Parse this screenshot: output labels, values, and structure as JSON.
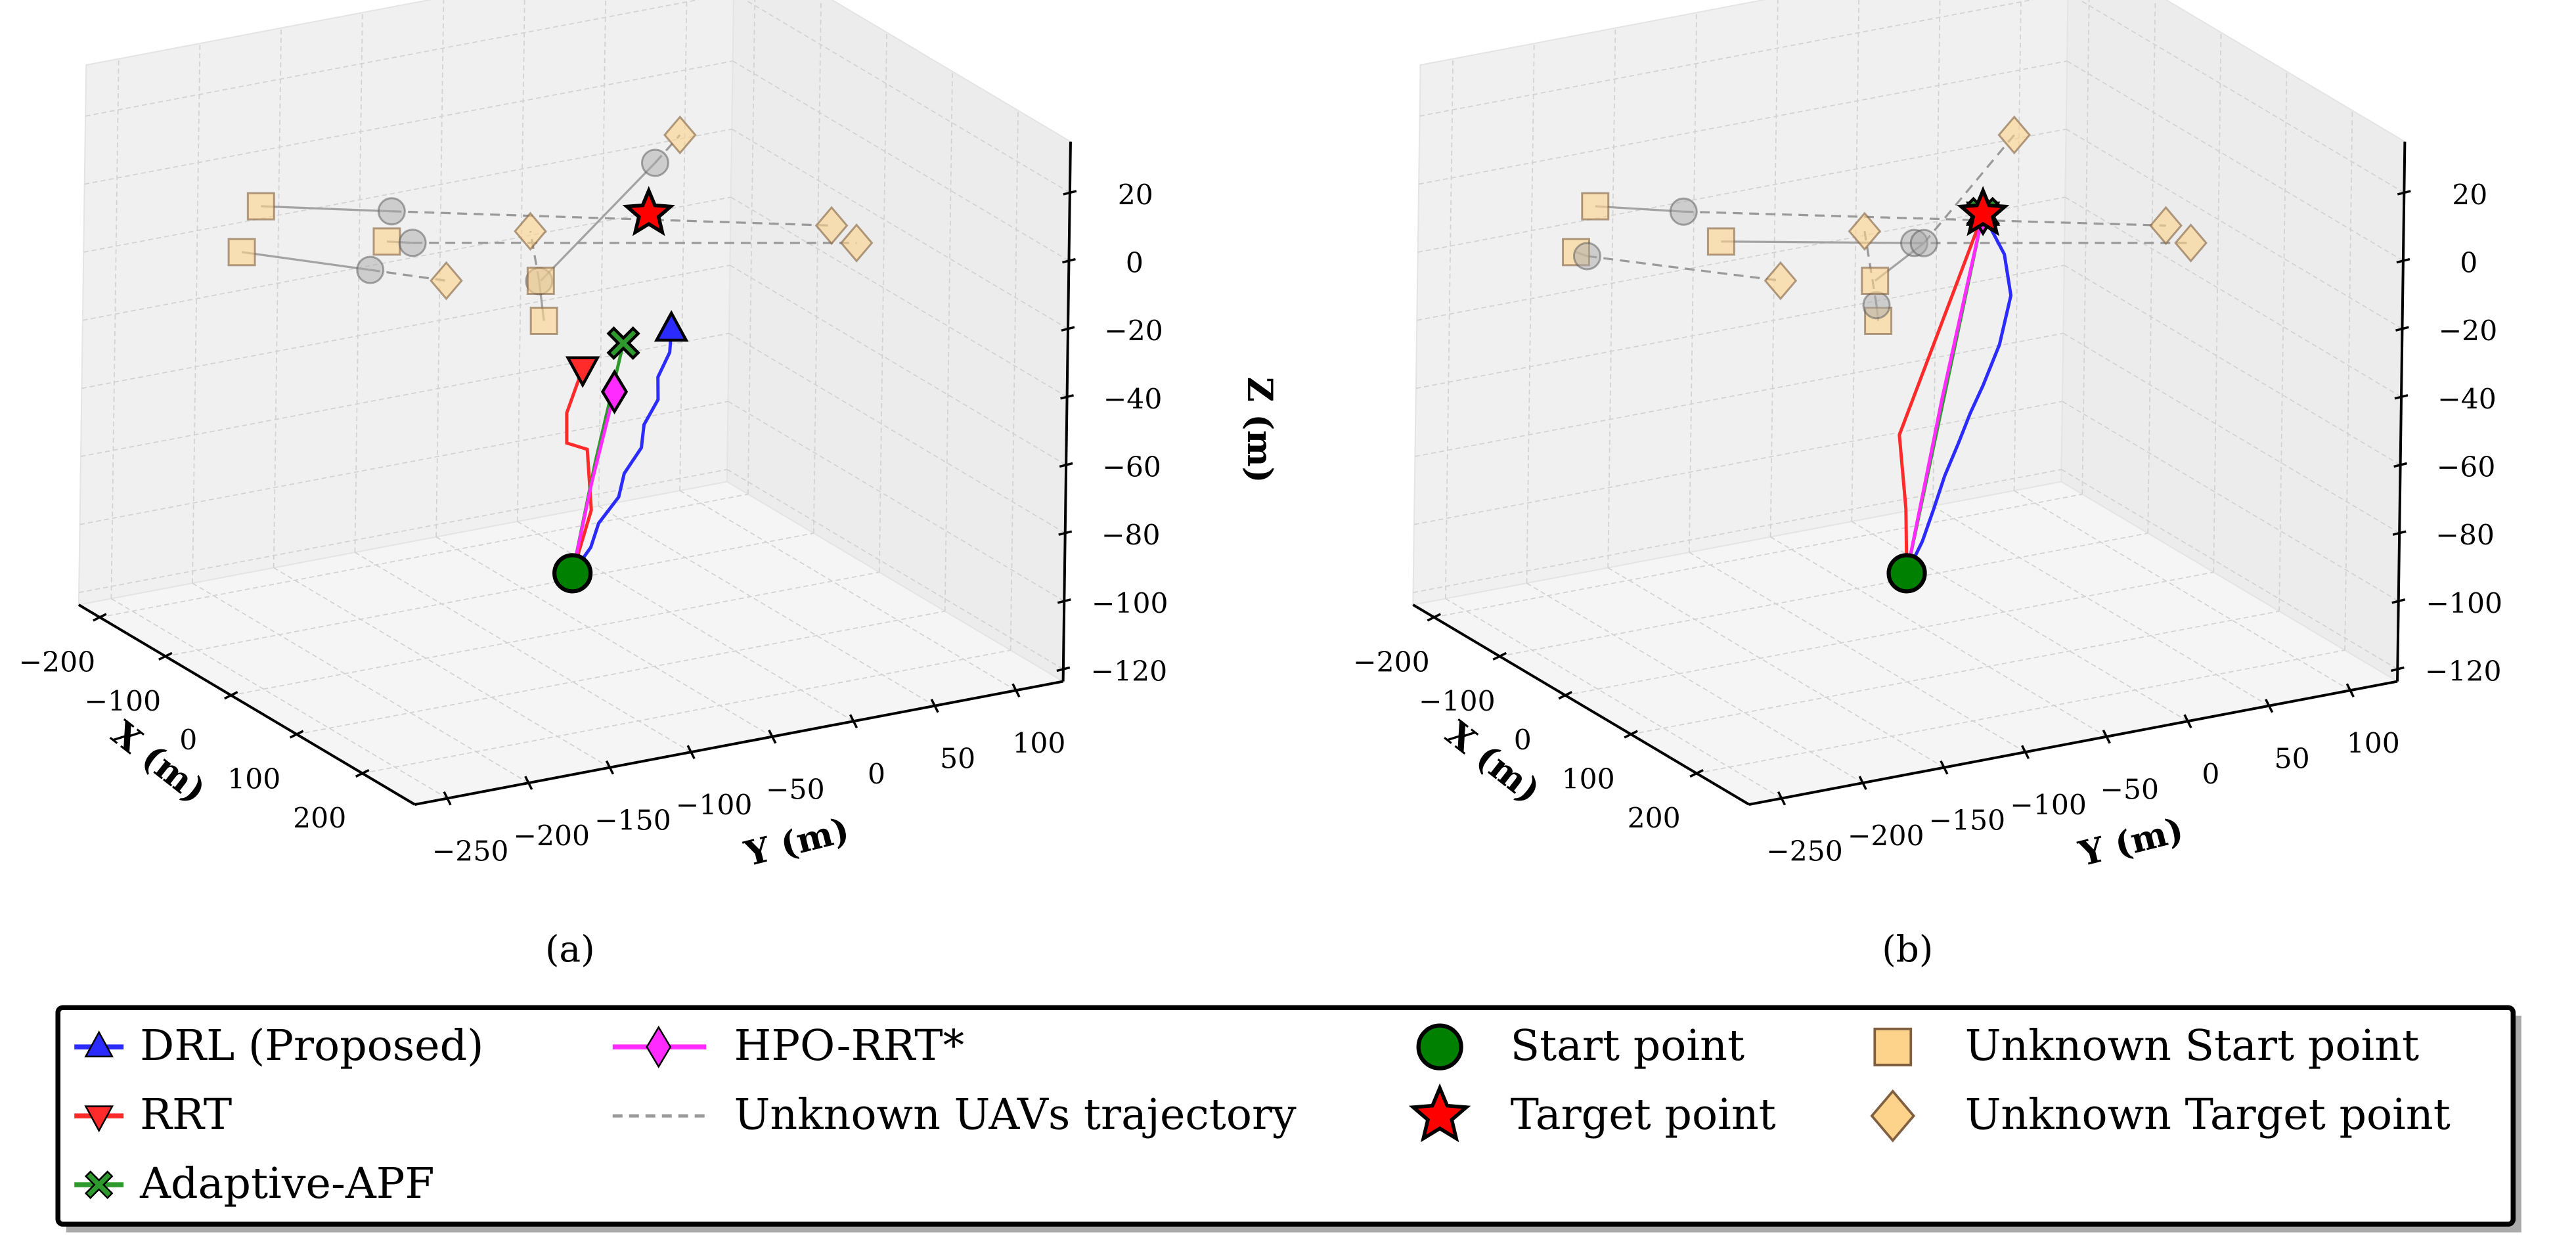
{
  "chart_data": {
    "type": "scatter3d",
    "axes": {
      "xlabel": "X (m)",
      "ylabel": "Y (m)",
      "zlabel": "Z (m)",
      "xlim": [
        -232,
        280
      ],
      "ylim": [
        -270,
        129
      ],
      "zlim": [
        -123.6,
        35
      ],
      "xticks": [
        -200,
        -100,
        0,
        100,
        200
      ],
      "xtick_labels": [
        "−200",
        "−100",
        "0",
        "100",
        "200"
      ],
      "yticks": [
        -250,
        -200,
        -150,
        -100,
        -50,
        0,
        50,
        100
      ],
      "ytick_labels": [
        "−250",
        "−200",
        "−150",
        "−100",
        "−50",
        "0",
        "50",
        "100"
      ],
      "zticks": [
        -120,
        -100,
        -80,
        -60,
        -40,
        -20,
        0,
        20
      ],
      "ztick_labels": [
        "−120",
        "−100",
        "−80",
        "−60",
        "−40",
        "−20",
        "0",
        "20"
      ],
      "grid": true
    },
    "start_point": [
      44.5,
      -78.5,
      -100
    ],
    "target_point": [
      132.4,
      -70.4,
      15
    ],
    "colors": {
      "DRL": "#2b2bff",
      "RRT": "#ff2b2b",
      "APF": "#2e9a2e",
      "HPO": "#ff2bff",
      "unknown_line": "#9a9a9a",
      "unknown_fill": "#fdd28a",
      "start": "#008000",
      "target": "#ff0000"
    },
    "panels": [
      {
        "caption": "(a)",
        "trajectories": {
          "DRL": [
            [
              44.5,
              -78.5,
              -100
            ],
            [
              56.9,
              -72.5,
              -91.5
            ],
            [
              69.2,
              -72.9,
              -83
            ],
            [
              81.6,
              -65.8,
              -74.5
            ],
            [
              93.9,
              -67.6,
              -66
            ],
            [
              106.3,
              -62.3,
              -57.5
            ],
            [
              118.6,
              -65.9,
              -49
            ],
            [
              131,
              -62.5,
              -40.5
            ],
            [
              143.3,
              -67.8,
              -32
            ],
            [
              155.7,
              -65.8,
              -23.5
            ],
            [
              168,
              -70,
              -15
            ]
          ],
          "RRT": [
            [
              44.5,
              -78.5,
              -100
            ],
            [
              80.9,
              -82.3,
              -76.9
            ],
            [
              109.3,
              -96.9,
              -54.5
            ],
            [
              104.6,
              -107.7,
              -52.2
            ],
            [
              119.4,
              -114,
              -41.1
            ],
            [
              145,
              -115,
              -25
            ]
          ],
          "APF": [
            [
              44.5,
              -78.5,
              -100
            ],
            [
              100,
              -88,
              -60
            ],
            [
              157,
              -95,
              -18
            ]
          ],
          "HPO": [
            [
              44.5,
              -78.5,
              -100
            ],
            [
              105,
              -92,
              -65
            ],
            [
              169,
              -105,
              -30
            ]
          ]
        },
        "unknown_uavs": [
          {
            "start": [
              -58,
              -232,
              10
            ],
            "current": [
              0,
              -175,
              10
            ],
            "target": [
              190,
              19,
              10
            ]
          },
          {
            "start": [
              57,
              -201,
              10
            ],
            "current": [
              69,
              -190,
              10
            ],
            "target": [
              233,
              17,
              10
            ]
          },
          {
            "start": [
              -42,
              -250,
              0
            ],
            "current": [
              106,
              -231,
              10
            ],
            "target": [
              155,
              -204,
              10
            ]
          },
          {
            "start": [
              203,
              -163,
              0
            ],
            "current": [
              190,
              -161,
              10
            ],
            "target": [
              90,
              -126,
              10
            ]
          },
          {
            "start": [
              190,
              -160,
              10
            ],
            "current": [
              69,
              -41,
              20
            ],
            "target": [
              57,
              -21,
              25
            ]
          }
        ]
      },
      {
        "caption": "(b)",
        "trajectories": {
          "DRL": [
            [
              44.5,
              -78.5,
              -100
            ],
            [
              54,
              -73,
              -90
            ],
            [
              64.2,
              -70.4,
              -79.5
            ],
            [
              74,
              -68,
              -69
            ],
            [
              84.4,
              -64,
              -58.5
            ],
            [
              94,
              -61,
              -49
            ],
            [
              103.1,
              -57,
              -40.1
            ],
            [
              115.9,
              -52.4,
              -27
            ],
            [
              128.2,
              -50.8,
              -11.3
            ],
            [
              132.2,
              -56.8,
              1.8
            ],
            [
              132.4,
              -70.4,
              15
            ]
          ],
          "RRT": [
            [
              44.5,
              -78.5,
              -100
            ],
            [
              50.7,
              -82.1,
              -80
            ],
            [
              135.7,
              -121.5,
              -45
            ],
            [
              142,
              -91.9,
              -5
            ],
            [
              132.4,
              -70.4,
              15
            ]
          ],
          "APF": [
            [
              44.5,
              -78.5,
              -100
            ],
            [
              90,
              -75,
              -42
            ],
            [
              132.4,
              -70.4,
              15
            ]
          ],
          "HPO": [
            [
              44.5,
              -78.5,
              -100
            ],
            [
              88,
              -76,
              -44
            ],
            [
              132.4,
              -70.4,
              15
            ]
          ]
        },
        "unknown_uavs": [
          {
            "start": [
              -58,
              -232,
              10
            ],
            "current": [
              -15,
              -195,
              10
            ],
            "target": [
              190,
              19,
              10
            ]
          },
          {
            "start": [
              57,
              -201,
              10
            ],
            "current": [
              131,
              -112,
              10
            ],
            "target": [
              233,
              17,
              10
            ]
          },
          {
            "start": [
              -42,
              -250,
              0
            ],
            "current": [
              -30,
              -248,
              0
            ],
            "target": [
              155,
              -204,
              10
            ]
          },
          {
            "start": [
              203,
              -163,
              0
            ],
            "current": [
              205,
              -165,
              5
            ],
            "target": [
              90,
              -126,
              10
            ]
          },
          {
            "start": [
              190,
              -160,
              10
            ],
            "current": [
              148,
              -113,
              12
            ],
            "target": [
              57,
              -21,
              25
            ]
          }
        ]
      }
    ],
    "legend": [
      {
        "label": "DRL (Proposed)",
        "series": "DRL"
      },
      {
        "label": "RRT",
        "series": "RRT"
      },
      {
        "label": "Adaptive-APF",
        "series": "APF"
      },
      {
        "label": "HPO-RRT*",
        "series": "HPO"
      },
      {
        "label": "Unknown UAVs trajectory",
        "series": "unknown_line"
      },
      {
        "label": "Start point",
        "series": "start"
      },
      {
        "label": "Target point",
        "series": "target"
      },
      {
        "label": "Unknown Start point",
        "series": "unknown_start"
      },
      {
        "label": "Unknown Target point",
        "series": "unknown_target"
      }
    ]
  }
}
